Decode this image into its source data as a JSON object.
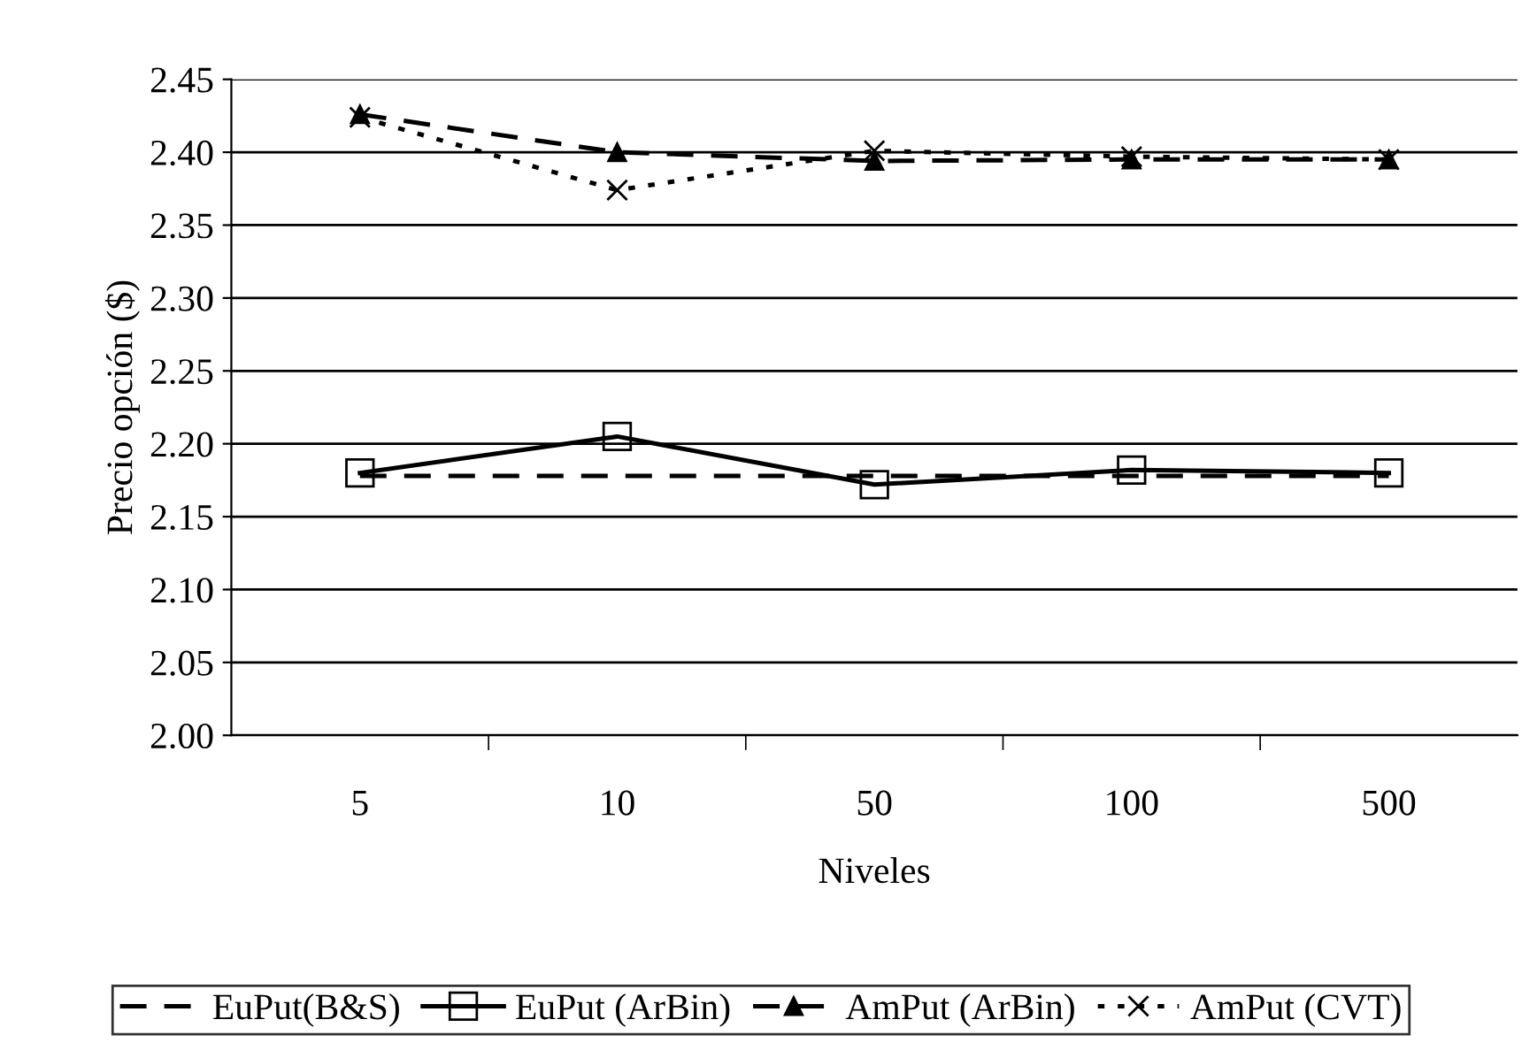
{
  "chart_data": {
    "type": "line",
    "xlabel": "Niveles",
    "ylabel": "Precio opción ($)",
    "categories": [
      "5",
      "10",
      "50",
      "100",
      "500"
    ],
    "series": [
      {
        "name": "EuPut(B&S)",
        "color": "#000000",
        "values": [
          2.178,
          2.178,
          2.178,
          2.178,
          2.178
        ],
        "line_style": "dashed",
        "marker": "none"
      },
      {
        "name": "EuPut (ArBin)",
        "color": "#000000",
        "values": [
          2.18,
          2.205,
          2.172,
          2.182,
          2.18
        ],
        "line_style": "solid",
        "marker": "square"
      },
      {
        "name": "AmPut (ArBin)",
        "color": "#000000",
        "values": [
          2.426,
          2.4,
          2.394,
          2.395,
          2.395
        ],
        "line_style": "dashed",
        "marker": "triangle"
      },
      {
        "name": "AmPut (CVT)",
        "color": "#000000",
        "values": [
          2.424,
          2.374,
          2.401,
          2.397,
          2.395
        ],
        "line_style": "dotted",
        "marker": "cross"
      }
    ],
    "ylim": [
      2.0,
      2.45
    ],
    "yticks": [
      {
        "value": 2.0,
        "label": "2.00"
      },
      {
        "value": 2.05,
        "label": "2.05"
      },
      {
        "value": 2.1,
        "label": "2.10"
      },
      {
        "value": 2.15,
        "label": "2.15"
      },
      {
        "value": 2.2,
        "label": "2.20"
      },
      {
        "value": 2.25,
        "label": "2.25"
      },
      {
        "value": 2.3,
        "label": "2.30"
      },
      {
        "value": 2.35,
        "label": "2.35"
      },
      {
        "value": 2.4,
        "label": "2.40"
      },
      {
        "value": 2.45,
        "label": "2.45"
      }
    ],
    "grid": "y",
    "legend": "bottom"
  }
}
